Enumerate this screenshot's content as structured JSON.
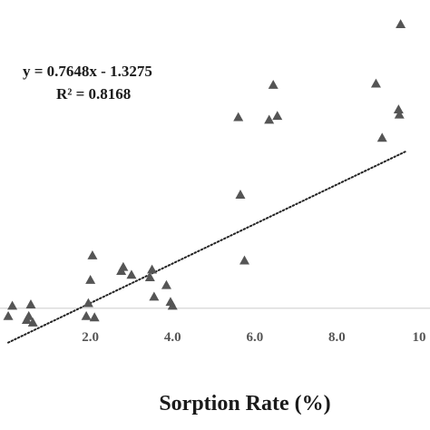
{
  "chart_data": {
    "type": "scatter",
    "xlabel": "Sorption Rate (%)",
    "ylabel": "",
    "xlim": [
      -0.2,
      10
    ],
    "ylim": [
      -1.2,
      10.6
    ],
    "x_ticks": [
      {
        "value": 2,
        "label": "2.0"
      },
      {
        "value": 4,
        "label": "4.0"
      },
      {
        "value": 6,
        "label": "6.0"
      },
      {
        "value": 8,
        "label": "8.0"
      },
      {
        "value": 10,
        "label": "10"
      }
    ],
    "points": [
      {
        "x": 0.0,
        "y": -0.3
      },
      {
        "x": 0.1,
        "y": 0.1
      },
      {
        "x": 0.45,
        "y": -0.45
      },
      {
        "x": 0.5,
        "y": -0.3
      },
      {
        "x": 0.55,
        "y": 0.15
      },
      {
        "x": 0.6,
        "y": -0.55
      },
      {
        "x": 1.9,
        "y": -0.3
      },
      {
        "x": 1.95,
        "y": 0.2
      },
      {
        "x": 2.0,
        "y": 1.1
      },
      {
        "x": 2.05,
        "y": 2.05
      },
      {
        "x": 2.1,
        "y": -0.35
      },
      {
        "x": 2.75,
        "y": 1.45
      },
      {
        "x": 2.8,
        "y": 1.6
      },
      {
        "x": 3.0,
        "y": 1.3
      },
      {
        "x": 3.45,
        "y": 1.2
      },
      {
        "x": 3.5,
        "y": 1.5
      },
      {
        "x": 3.55,
        "y": 0.45
      },
      {
        "x": 3.85,
        "y": 0.9
      },
      {
        "x": 3.95,
        "y": 0.25
      },
      {
        "x": 4.0,
        "y": 0.1
      },
      {
        "x": 5.6,
        "y": 7.4
      },
      {
        "x": 5.65,
        "y": 4.4
      },
      {
        "x": 5.75,
        "y": 1.85
      },
      {
        "x": 6.35,
        "y": 7.3
      },
      {
        "x": 6.45,
        "y": 8.65
      },
      {
        "x": 6.55,
        "y": 7.45
      },
      {
        "x": 8.95,
        "y": 8.7
      },
      {
        "x": 9.1,
        "y": 6.6
      },
      {
        "x": 9.5,
        "y": 7.7
      },
      {
        "x": 9.52,
        "y": 7.5
      },
      {
        "x": 9.55,
        "y": 11.0
      }
    ],
    "trendline": {
      "slope": 0.7648,
      "intercept": -1.3275,
      "x_range": [
        -0.2,
        10
      ],
      "style": "dotted"
    },
    "equation": "y = 0.7648x - 1.3275",
    "r_squared": "R² = 0.8168",
    "grid": false,
    "marker": "triangle",
    "colors": {
      "marker": "#555555",
      "trendline": "#222222",
      "zero_line": "#d0d0d0"
    }
  }
}
